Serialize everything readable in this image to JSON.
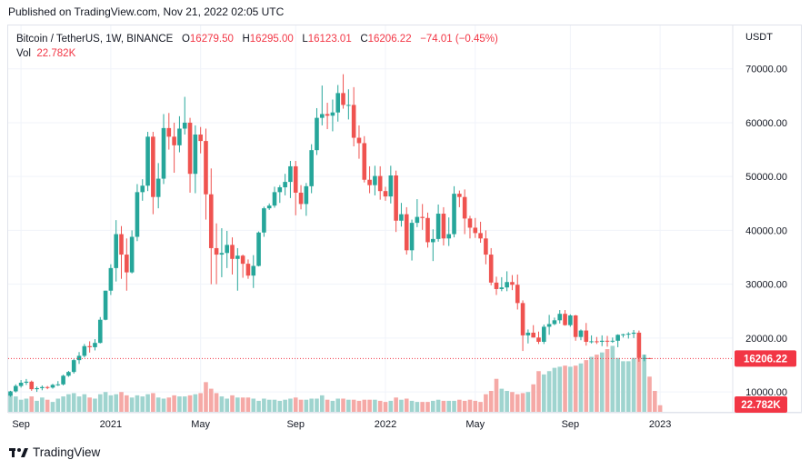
{
  "header": {
    "published": "Published on TradingView.com, Nov 21, 2022 02:05 UTC"
  },
  "legend": {
    "symbol": "Bitcoin / TetherUS, 1W, BINANCE",
    "o_label": "O",
    "o": "16279.50",
    "h_label": "H",
    "h": "16295.00",
    "l_label": "L",
    "l": "16123.01",
    "c_label": "C",
    "c": "16206.22",
    "change": "−74.01 (−0.45%)",
    "vol_label": "Vol",
    "vol": "22.782K"
  },
  "footer": {
    "brand": "TradingView",
    "logo_icon": "tradingview-logo-icon"
  },
  "colors": {
    "up": "#26a69a",
    "down": "#ef5350",
    "up_vol": "#9fd4cf",
    "down_vol": "#f5a9a6",
    "price_tag": "#f23645"
  },
  "chart_data": {
    "type": "candlestick",
    "currency": "USDT",
    "interval": "1W",
    "y_ticks": [
      "70000.00",
      "60000.00",
      "50000.00",
      "40000.00",
      "30000.00",
      "20000.00",
      "10000.00"
    ],
    "y_tick_values": [
      70000,
      60000,
      50000,
      40000,
      30000,
      20000,
      10000
    ],
    "ylim": [
      6300,
      73500
    ],
    "x_ticks": [
      "Sep",
      "2021",
      "May",
      "Sep",
      "2022",
      "May",
      "Sep",
      "2023"
    ],
    "x_tick_index": [
      2,
      19,
      36,
      54,
      71,
      88,
      106,
      123
    ],
    "last_price_label": "16206.22",
    "last_price": 16206.22,
    "last_volume_label": "22.782K",
    "grid": true,
    "ohlc": [
      [
        9300,
        10200,
        9100,
        10100
      ],
      [
        10100,
        11400,
        9900,
        11100
      ],
      [
        11100,
        12200,
        10800,
        11700
      ],
      [
        11700,
        12400,
        11300,
        11900
      ],
      [
        11900,
        12100,
        10200,
        10500
      ],
      [
        10500,
        11000,
        10000,
        10700
      ],
      [
        10700,
        11200,
        10300,
        10900
      ],
      [
        10900,
        11100,
        10500,
        10800
      ],
      [
        10800,
        11500,
        10600,
        11300
      ],
      [
        11300,
        12000,
        11100,
        11400
      ],
      [
        11400,
        13200,
        11200,
        13000
      ],
      [
        13000,
        13900,
        12800,
        13700
      ],
      [
        13700,
        16100,
        13400,
        15900
      ],
      [
        15900,
        17400,
        15200,
        16700
      ],
      [
        16700,
        18900,
        16400,
        18500
      ],
      [
        18500,
        19400,
        17300,
        18300
      ],
      [
        18300,
        19800,
        17700,
        19100
      ],
      [
        19100,
        23900,
        19000,
        23400
      ],
      [
        23400,
        28800,
        23300,
        28800
      ],
      [
        28800,
        33700,
        28000,
        33000
      ],
      [
        33000,
        41900,
        30500,
        39300
      ],
      [
        39300,
        40800,
        31000,
        35500
      ],
      [
        35500,
        38500,
        28800,
        32200
      ],
      [
        32200,
        40000,
        32000,
        38800
      ],
      [
        38800,
        48600,
        38000,
        47100
      ],
      [
        47100,
        49500,
        45500,
        48300
      ],
      [
        48300,
        58300,
        47300,
        57400
      ],
      [
        57400,
        58300,
        43000,
        46200
      ],
      [
        46200,
        52500,
        44100,
        49600
      ],
      [
        49600,
        61600,
        48600,
        59000
      ],
      [
        59000,
        61800,
        55000,
        57400
      ],
      [
        57400,
        60000,
        50700,
        55800
      ],
      [
        55800,
        61200,
        54500,
        58900
      ],
      [
        58900,
        64800,
        57800,
        60000
      ],
      [
        60000,
        60900,
        47000,
        50500
      ],
      [
        50500,
        59500,
        46900,
        57800
      ],
      [
        57800,
        59200,
        54300,
        56600
      ],
      [
        56600,
        58900,
        42000,
        46700
      ],
      [
        46700,
        51500,
        30000,
        36700
      ],
      [
        36700,
        41300,
        30000,
        35500
      ],
      [
        35500,
        40400,
        31300,
        35800
      ],
      [
        35800,
        39900,
        33000,
        37300
      ],
      [
        37300,
        38700,
        31800,
        34700
      ],
      [
        34700,
        36700,
        28800,
        35300
      ],
      [
        35300,
        35500,
        31200,
        33800
      ],
      [
        33800,
        34600,
        31000,
        31600
      ],
      [
        31600,
        35400,
        29300,
        33400
      ],
      [
        33400,
        39800,
        33300,
        39600
      ],
      [
        39600,
        44400,
        38800,
        44100
      ],
      [
        44100,
        45000,
        43800,
        44600
      ],
      [
        44600,
        48100,
        44200,
        47100
      ],
      [
        47100,
        48400,
        45100,
        48000
      ],
      [
        48000,
        50500,
        46500,
        49000
      ],
      [
        49000,
        52900,
        46000,
        51900
      ],
      [
        51900,
        52900,
        42800,
        47000
      ],
      [
        47000,
        48400,
        43900,
        44900
      ],
      [
        44900,
        48800,
        42700,
        48200
      ],
      [
        48200,
        56000,
        46900,
        54900
      ],
      [
        54900,
        62700,
        54000,
        60900
      ],
      [
        60900,
        66900,
        59500,
        61600
      ],
      [
        61600,
        63700,
        58800,
        61300
      ],
      [
        61300,
        64300,
        58400,
        61900
      ],
      [
        61900,
        67000,
        60200,
        65500
      ],
      [
        65500,
        69000,
        62600,
        63300
      ],
      [
        63300,
        66200,
        60600,
        63300
      ],
      [
        63300,
        66600,
        55600,
        57200
      ],
      [
        57200,
        59500,
        53300,
        56200
      ],
      [
        56200,
        57500,
        48900,
        49400
      ],
      [
        49400,
        51900,
        46900,
        48400
      ],
      [
        48400,
        52000,
        46500,
        50100
      ],
      [
        50100,
        51900,
        45700,
        47300
      ],
      [
        47300,
        48100,
        45500,
        46300
      ],
      [
        46300,
        52000,
        45000,
        50200
      ],
      [
        50200,
        51100,
        39700,
        41800
      ],
      [
        41800,
        45100,
        40700,
        43000
      ],
      [
        43000,
        44300,
        35500,
        36300
      ],
      [
        36300,
        42000,
        34400,
        41400
      ],
      [
        41400,
        45800,
        40600,
        42500
      ],
      [
        42500,
        44900,
        40100,
        42300
      ],
      [
        42300,
        43300,
        36800,
        37800
      ],
      [
        37800,
        40200,
        34300,
        38400
      ],
      [
        38400,
        44800,
        37900,
        43100
      ],
      [
        43100,
        44300,
        37200,
        38500
      ],
      [
        38500,
        42400,
        37100,
        39300
      ],
      [
        39300,
        48200,
        38700,
        46800
      ],
      [
        46800,
        47400,
        44300,
        46200
      ],
      [
        46200,
        47600,
        39300,
        42200
      ],
      [
        42200,
        42700,
        38500,
        40500
      ],
      [
        40500,
        42300,
        38600,
        39500
      ],
      [
        39500,
        41600,
        37700,
        38500
      ],
      [
        38500,
        40000,
        33700,
        35500
      ],
      [
        35500,
        36700,
        29800,
        30300
      ],
      [
        30300,
        31400,
        28000,
        29100
      ],
      [
        29100,
        31300,
        28700,
        29400
      ],
      [
        29400,
        32400,
        28700,
        30400
      ],
      [
        30400,
        31700,
        28900,
        29900
      ],
      [
        29900,
        31800,
        25300,
        26500
      ],
      [
        26500,
        27000,
        17600,
        20500
      ],
      [
        20500,
        21600,
        19000,
        21000
      ],
      [
        21000,
        22400,
        20100,
        20100
      ],
      [
        20100,
        21200,
        18900,
        19300
      ],
      [
        19300,
        22500,
        18900,
        22100
      ],
      [
        22100,
        24300,
        20600,
        22600
      ],
      [
        22600,
        23800,
        22400,
        23300
      ],
      [
        23300,
        25200,
        22700,
        24500
      ],
      [
        24500,
        25200,
        22300,
        22400
      ],
      [
        22400,
        24400,
        22100,
        24200
      ],
      [
        24200,
        24300,
        19500,
        20200
      ],
      [
        20200,
        21600,
        19600,
        21400
      ],
      [
        21400,
        22800,
        18600,
        19300
      ],
      [
        19300,
        20500,
        19000,
        19400
      ],
      [
        19400,
        20200,
        18900,
        19300
      ],
      [
        19300,
        20500,
        18500,
        19500
      ],
      [
        19500,
        20400,
        18400,
        19400
      ],
      [
        19400,
        20100,
        19100,
        19500
      ],
      [
        19500,
        20700,
        18300,
        20600
      ],
      [
        20600,
        20800,
        20100,
        20700
      ],
      [
        20700,
        21100,
        19900,
        20800
      ],
      [
        20800,
        21500,
        20000,
        21000
      ],
      [
        21000,
        21400,
        15600,
        16300
      ],
      [
        16300,
        16900,
        15700,
        16300
      ],
      [
        16279.5,
        16295,
        16123.01,
        16206.22
      ]
    ],
    "volume": [
      17,
      14,
      11,
      12,
      14,
      10,
      13,
      11,
      9,
      12,
      14,
      16,
      17,
      14,
      16,
      13,
      12,
      16,
      18,
      15,
      16,
      18,
      15,
      13,
      15,
      14,
      16,
      17,
      13,
      12,
      13,
      15,
      14,
      14,
      15,
      16,
      17,
      27,
      21,
      17,
      14,
      12,
      15,
      13,
      13,
      13,
      12,
      10,
      12,
      11,
      11,
      10,
      11,
      12,
      13,
      11,
      11,
      12,
      12,
      15,
      11,
      10,
      12,
      12,
      11,
      11,
      10,
      11,
      11,
      11,
      10,
      9,
      10,
      13,
      11,
      12,
      10,
      9,
      9,
      9,
      10,
      11,
      10,
      10,
      10,
      11,
      10,
      11,
      10,
      9,
      16,
      19,
      30,
      21,
      19,
      18,
      16,
      17,
      18,
      25,
      37,
      34,
      37,
      40,
      41,
      42,
      41,
      42,
      44,
      47,
      50,
      52,
      54,
      57,
      60,
      49,
      46,
      46,
      49,
      49,
      52,
      32,
      19,
      6
    ],
    "vol_ylim": [
      0,
      62
    ]
  }
}
